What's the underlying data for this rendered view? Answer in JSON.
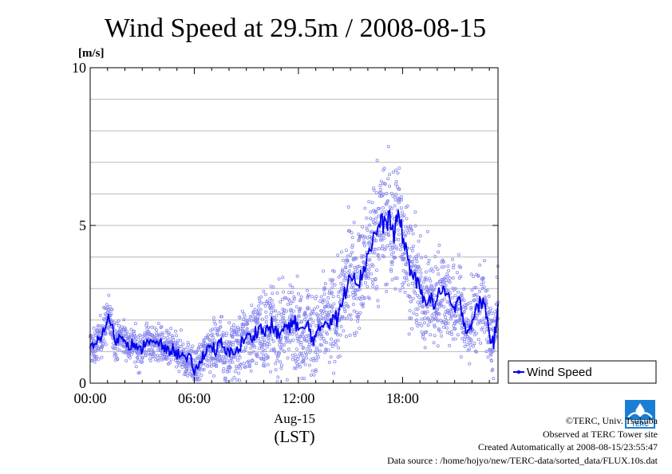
{
  "chart_data": {
    "type": "scatter",
    "title": "Wind Speed at 29.5m / 2008-08-15",
    "y_unit_label": "[m/s]",
    "xlabel_date": "Aug-15",
    "xlabel_zone": "(LST)",
    "xlim_hours": [
      0,
      23.5
    ],
    "ylim": [
      0,
      10
    ],
    "y_ticks": [
      0,
      5,
      10
    ],
    "y_minor_grid": [
      1,
      2,
      3,
      4,
      6,
      7,
      8,
      9
    ],
    "x_ticks": [
      {
        "hour": 0,
        "label": "00:00"
      },
      {
        "hour": 6,
        "label": "06:00"
      },
      {
        "hour": 12,
        "label": "12:00"
      },
      {
        "hour": 18,
        "label": "18:00"
      }
    ],
    "grid": true,
    "legend": {
      "position": "right",
      "entries": [
        "Wind Speed"
      ]
    },
    "series": [
      {
        "name": "Wind Speed",
        "color": "#0000ee",
        "scatter_color": "#8888ee",
        "mean_hour": [
          0.0,
          0.25,
          0.5,
          0.75,
          1.0,
          1.25,
          1.5,
          1.75,
          2.0,
          2.25,
          2.5,
          2.75,
          3.0,
          3.25,
          3.5,
          3.75,
          4.0,
          4.25,
          4.5,
          4.75,
          5.0,
          5.25,
          5.5,
          5.75,
          6.0,
          6.25,
          6.5,
          6.75,
          7.0,
          7.25,
          7.5,
          7.75,
          8.0,
          8.25,
          8.5,
          8.75,
          9.0,
          9.25,
          9.5,
          9.75,
          10.0,
          10.25,
          10.5,
          10.75,
          11.0,
          11.25,
          11.5,
          11.75,
          12.0,
          12.25,
          12.5,
          12.75,
          13.0,
          13.25,
          13.5,
          13.75,
          14.0,
          14.25,
          14.5,
          14.75,
          15.0,
          15.25,
          15.5,
          15.75,
          16.0,
          16.25,
          16.5,
          16.75,
          17.0,
          17.25,
          17.5,
          17.75,
          18.0,
          18.25,
          18.5,
          18.75,
          19.0,
          19.25,
          19.5,
          19.75,
          20.0,
          20.25,
          20.5,
          20.75,
          21.0,
          21.25,
          21.5,
          21.75,
          22.0,
          22.25,
          22.5,
          22.75,
          23.0,
          23.25,
          23.5
        ],
        "mean_values": [
          1.2,
          1.1,
          1.4,
          1.6,
          2.1,
          1.8,
          1.3,
          1.5,
          1.4,
          1.2,
          1.3,
          1.0,
          1.1,
          1.4,
          1.3,
          1.2,
          1.3,
          1.1,
          1.0,
          1.1,
          0.9,
          1.0,
          0.7,
          0.8,
          0.4,
          0.5,
          0.9,
          1.1,
          1.2,
          1.0,
          1.3,
          1.0,
          0.9,
          1.1,
          1.0,
          1.3,
          1.5,
          1.4,
          1.6,
          1.8,
          1.6,
          1.7,
          1.9,
          1.5,
          1.6,
          1.8,
          1.7,
          2.1,
          1.7,
          1.6,
          1.9,
          1.5,
          1.4,
          1.7,
          2.0,
          1.9,
          2.2,
          2.0,
          2.5,
          3.0,
          3.6,
          3.4,
          3.2,
          3.6,
          4.1,
          4.5,
          4.8,
          5.1,
          5.0,
          5.3,
          4.6,
          5.4,
          4.7,
          4.1,
          3.5,
          3.3,
          2.9,
          2.6,
          2.8,
          2.5,
          2.6,
          3.1,
          2.8,
          2.5,
          2.3,
          2.6,
          2.1,
          1.6,
          2.0,
          2.3,
          2.6,
          2.5,
          1.5,
          1.3,
          2.3
        ],
        "scatter_spread": [
          0.5,
          0.5,
          0.5,
          0.6,
          0.6,
          0.6,
          0.5,
          0.5,
          0.5,
          0.5,
          0.5,
          0.5,
          0.5,
          0.5,
          0.5,
          0.5,
          0.5,
          0.5,
          0.5,
          0.5,
          0.5,
          0.5,
          0.5,
          0.5,
          0.5,
          0.5,
          0.6,
          0.6,
          0.7,
          0.7,
          0.8,
          0.8,
          0.8,
          0.9,
          0.9,
          1.0,
          1.0,
          1.0,
          1.0,
          1.1,
          1.1,
          1.1,
          1.1,
          1.1,
          1.2,
          1.2,
          1.2,
          1.2,
          1.2,
          1.2,
          1.2,
          1.2,
          1.2,
          1.2,
          1.2,
          1.3,
          1.3,
          1.3,
          1.4,
          1.4,
          1.5,
          1.5,
          1.6,
          1.6,
          1.7,
          1.7,
          1.8,
          1.8,
          1.8,
          1.8,
          1.8,
          1.8,
          1.7,
          1.6,
          1.5,
          1.4,
          1.3,
          1.3,
          1.3,
          1.3,
          1.3,
          1.3,
          1.3,
          1.3,
          1.2,
          1.2,
          1.2,
          1.1,
          1.1,
          1.1,
          1.1,
          1.0,
          1.0,
          1.0,
          1.0
        ]
      }
    ]
  },
  "credits": {
    "copyright": "©TERC, Univ. Tsukuba",
    "site": "Observed at TERC Tower site",
    "created": "Created Automatically at 2008-08-15/23:55:47",
    "source": "Data source : /home/hojyo/new/TERC-data/sorted_data/FLUX.10s.dat"
  },
  "logo": {
    "text": "TERC",
    "color": "#1a7fd4"
  }
}
